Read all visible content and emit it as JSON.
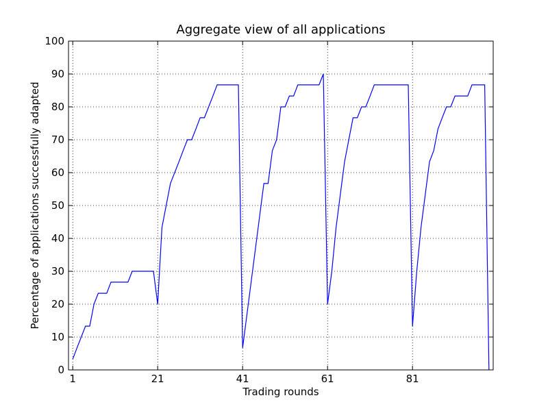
{
  "chart_data": {
    "type": "line",
    "title": "Aggregate view of all applications",
    "xlabel": "Trading rounds",
    "ylabel": "Percentage of applications successfully adapted",
    "xlim": [
      0,
      100
    ],
    "ylim": [
      0,
      100
    ],
    "x_ticks": [
      1,
      21,
      41,
      61,
      81
    ],
    "y_ticks": [
      0,
      10,
      20,
      30,
      40,
      50,
      60,
      70,
      80,
      90,
      100
    ],
    "grid": true,
    "legend": "none",
    "series": [
      {
        "color": "#0000ff",
        "points": [
          [
            1,
            3.3
          ],
          [
            2,
            6.7
          ],
          [
            3,
            10
          ],
          [
            4,
            13.3
          ],
          [
            5,
            13.3
          ],
          [
            6,
            20
          ],
          [
            7,
            23.3
          ],
          [
            8,
            23.3
          ],
          [
            9,
            23.3
          ],
          [
            10,
            26.7
          ],
          [
            11,
            26.7
          ],
          [
            12,
            26.7
          ],
          [
            13,
            26.7
          ],
          [
            14,
            26.7
          ],
          [
            15,
            30
          ],
          [
            16,
            30
          ],
          [
            17,
            30
          ],
          [
            18,
            30
          ],
          [
            19,
            30
          ],
          [
            20,
            30
          ],
          [
            21,
            20
          ],
          [
            22,
            43.3
          ],
          [
            23,
            50
          ],
          [
            24,
            56.7
          ],
          [
            25,
            60
          ],
          [
            26,
            63.3
          ],
          [
            27,
            66.7
          ],
          [
            28,
            70
          ],
          [
            29,
            70
          ],
          [
            30,
            73.3
          ],
          [
            31,
            76.7
          ],
          [
            32,
            76.7
          ],
          [
            33,
            80
          ],
          [
            34,
            83.3
          ],
          [
            35,
            86.7
          ],
          [
            36,
            86.7
          ],
          [
            37,
            86.7
          ],
          [
            38,
            86.7
          ],
          [
            39,
            86.7
          ],
          [
            40,
            86.7
          ],
          [
            41,
            6.7
          ],
          [
            42,
            16.7
          ],
          [
            43,
            26.7
          ],
          [
            44,
            36.7
          ],
          [
            45,
            46.7
          ],
          [
            46,
            56.7
          ],
          [
            47,
            56.7
          ],
          [
            48,
            66.7
          ],
          [
            49,
            70
          ],
          [
            50,
            80
          ],
          [
            51,
            80
          ],
          [
            52,
            83.3
          ],
          [
            53,
            83.3
          ],
          [
            54,
            86.7
          ],
          [
            55,
            86.7
          ],
          [
            56,
            86.7
          ],
          [
            57,
            86.7
          ],
          [
            58,
            86.7
          ],
          [
            59,
            86.7
          ],
          [
            60,
            90
          ],
          [
            61,
            20
          ],
          [
            62,
            30
          ],
          [
            63,
            43.3
          ],
          [
            64,
            53.3
          ],
          [
            65,
            63.3
          ],
          [
            66,
            70
          ],
          [
            67,
            76.7
          ],
          [
            68,
            76.7
          ],
          [
            69,
            80
          ],
          [
            70,
            80
          ],
          [
            71,
            83.3
          ],
          [
            72,
            86.7
          ],
          [
            73,
            86.7
          ],
          [
            74,
            86.7
          ],
          [
            75,
            86.7
          ],
          [
            76,
            86.7
          ],
          [
            77,
            86.7
          ],
          [
            78,
            86.7
          ],
          [
            79,
            86.7
          ],
          [
            80,
            86.7
          ],
          [
            81,
            13.3
          ],
          [
            82,
            30
          ],
          [
            83,
            43.3
          ],
          [
            84,
            53.3
          ],
          [
            85,
            63.3
          ],
          [
            86,
            66.7
          ],
          [
            87,
            73.3
          ],
          [
            88,
            76.7
          ],
          [
            89,
            80
          ],
          [
            90,
            80
          ],
          [
            91,
            83.3
          ],
          [
            92,
            83.3
          ],
          [
            93,
            83.3
          ],
          [
            94,
            83.3
          ],
          [
            95,
            86.7
          ],
          [
            96,
            86.7
          ],
          [
            97,
            86.7
          ],
          [
            98,
            86.7
          ],
          [
            99,
            0
          ]
        ]
      }
    ]
  }
}
